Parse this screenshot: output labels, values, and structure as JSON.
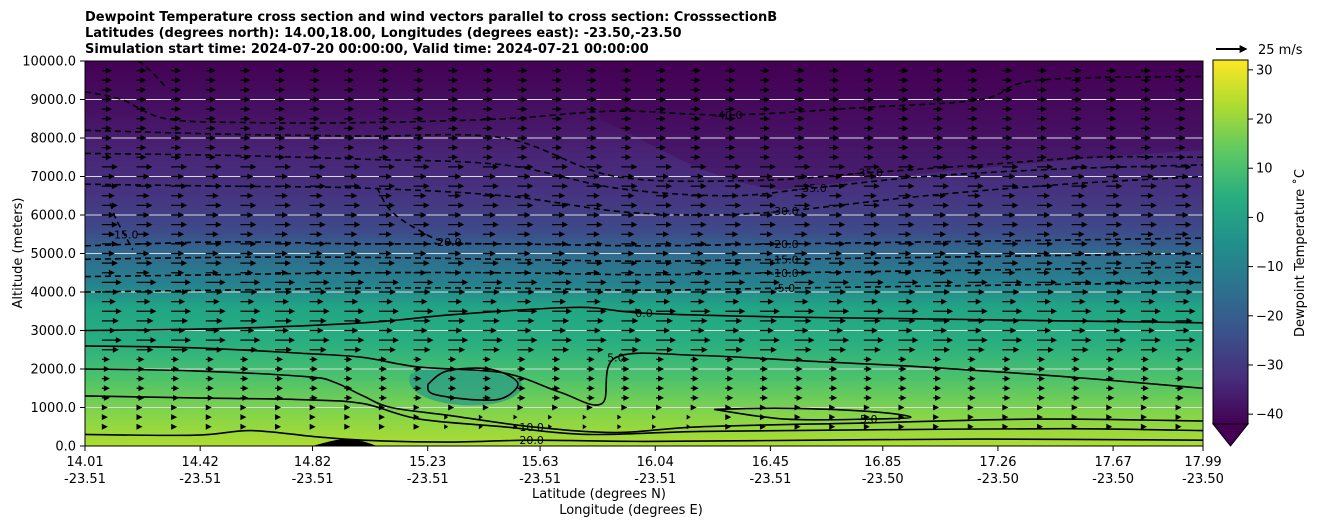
{
  "chart_data": {
    "type": "heatmap",
    "title_lines": [
      "Dewpoint Temperature cross section and wind vectors parallel to cross section: CrosssectionB",
      "Latitudes (degrees north): 14.00,18.00, Longitudes (degrees east): -23.50,-23.50",
      "Simulation start time: 2024-07-20 00:00:00, Valid time: 2024-07-21 00:00:00"
    ],
    "ylabel": "Altitude (meters)",
    "xlabel_lat": "Latitude (degrees N)",
    "xlabel_lon": "Longitude (degrees E)",
    "ylim": [
      0,
      10000
    ],
    "y_ticks": [
      "0.0",
      "1000.0",
      "2000.0",
      "3000.0",
      "4000.0",
      "5000.0",
      "6000.0",
      "7000.0",
      "8000.0",
      "9000.0",
      "10000.0"
    ],
    "y_tick_values": [
      0,
      1000,
      2000,
      3000,
      4000,
      5000,
      6000,
      7000,
      8000,
      9000,
      10000
    ],
    "xlim": [
      14.01,
      17.99
    ],
    "x_tick_lat": [
      "14.01",
      "14.42",
      "14.82",
      "15.23",
      "15.63",
      "16.04",
      "16.45",
      "16.85",
      "17.26",
      "17.67",
      "17.99"
    ],
    "x_tick_lon": [
      "-23.51",
      "-23.51",
      "-23.51",
      "-23.51",
      "-23.51",
      "-23.51",
      "-23.51",
      "-23.50",
      "-23.50",
      "-23.50",
      "-23.50"
    ],
    "x_tick_values": [
      14.01,
      14.42,
      14.82,
      15.23,
      15.63,
      16.04,
      16.45,
      16.85,
      17.26,
      17.67,
      17.99
    ],
    "colorbar": {
      "label": "Dewpoint Temperature ˚C",
      "ticks": [
        "−40",
        "−30",
        "−20",
        "−10",
        "0",
        "10",
        "20",
        "30"
      ],
      "tick_values": [
        -40,
        -30,
        -20,
        -10,
        0,
        10,
        20,
        30
      ],
      "range": [
        -42,
        32
      ],
      "colormap": [
        "#440154",
        "#472d7b",
        "#3b528b",
        "#2c728e",
        "#21918c",
        "#28ae80",
        "#5ec962",
        "#addc30",
        "#fde725"
      ]
    },
    "quiver_key_label": "25 m/s",
    "temperature_profile": {
      "altitudes": [
        0,
        500,
        1000,
        1500,
        2000,
        2500,
        3000,
        3500,
        4000,
        4500,
        5000,
        5500,
        6000,
        6500,
        7000,
        7500,
        8000,
        8500,
        9000,
        9500,
        10000
      ],
      "dewpoint": [
        20,
        14,
        10,
        7,
        6,
        3,
        1,
        0,
        -5,
        -10,
        -20,
        -24,
        -27,
        -30,
        -32,
        -35,
        -37,
        -39,
        -40,
        -41,
        -42
      ]
    },
    "solid_contours": [
      {
        "level": 0,
        "label": "0.0",
        "x": [
          14.01,
          14.5,
          15.0,
          15.3,
          15.6,
          15.8,
          16.0,
          16.5,
          17.0,
          17.5,
          17.99
        ],
        "y": [
          3000,
          3050,
          3200,
          3400,
          3550,
          3600,
          3450,
          3350,
          3300,
          3250,
          3200
        ]
      },
      {
        "level": 5,
        "label": "5.0",
        "x": [
          14.01,
          14.4,
          14.8,
          15.0,
          15.2,
          15.5,
          15.7,
          15.85,
          15.9,
          16.2,
          16.6,
          17.0,
          17.5,
          17.99
        ],
        "y": [
          2600,
          2550,
          2400,
          2300,
          2050,
          1900,
          1400,
          1100,
          2300,
          2350,
          2200,
          2050,
          1800,
          1500
        ]
      },
      {
        "level": 5,
        "label": "",
        "x": [
          15.23,
          15.3,
          15.45,
          15.55,
          15.5,
          15.4,
          15.25,
          15.23
        ],
        "y": [
          1600,
          1950,
          2000,
          1650,
          1250,
          1200,
          1350,
          1600
        ]
      },
      {
        "level": 5,
        "label": "5.0",
        "x": [
          16.25,
          16.5,
          16.8,
          16.95,
          16.8,
          16.5,
          16.25
        ],
        "y": [
          950,
          980,
          900,
          750,
          700,
          700,
          950
        ]
      },
      {
        "level": 10,
        "label": "10.0",
        "x": [
          14.01,
          14.4,
          14.8,
          14.9,
          15.0,
          15.1,
          15.3,
          15.6,
          15.9,
          16.2,
          16.8,
          17.4,
          17.99
        ],
        "y": [
          2000,
          1950,
          1800,
          1650,
          1300,
          1000,
          800,
          500,
          350,
          500,
          600,
          700,
          650
        ]
      },
      {
        "level": 10,
        "label": "",
        "x": [
          14.01,
          14.4,
          14.8,
          15.0,
          15.2,
          15.5,
          15.8,
          16.2,
          16.8,
          17.5,
          17.99
        ],
        "y": [
          1300,
          1250,
          1200,
          1100,
          700,
          500,
          300,
          380,
          420,
          450,
          400
        ]
      },
      {
        "level": 20,
        "label": "20.0",
        "x": [
          14.01,
          14.4,
          14.6,
          14.82,
          15.0,
          15.3,
          15.6,
          16.0,
          16.6,
          17.2,
          17.99
        ],
        "y": [
          300,
          280,
          400,
          250,
          150,
          100,
          150,
          120,
          150,
          180,
          150
        ]
      }
    ],
    "dashed_contours": [
      {
        "level": -5,
        "label": "-5.0",
        "x": [
          14.01,
          14.5,
          15.0,
          15.5,
          16.0,
          16.5,
          17.0,
          17.5,
          17.99
        ],
        "y": [
          4000,
          4050,
          4100,
          4100,
          4050,
          4100,
          4150,
          4200,
          4250
        ]
      },
      {
        "level": -10,
        "label": "-10.0",
        "x": [
          14.01,
          14.5,
          15.0,
          15.5,
          16.0,
          16.5,
          17.0,
          17.5,
          17.99
        ],
        "y": [
          4400,
          4450,
          4500,
          4500,
          4450,
          4500,
          4550,
          4600,
          4650
        ]
      },
      {
        "level": -15,
        "label": "-15.0",
        "x": [
          14.01,
          14.5,
          15.0,
          15.5,
          16.0,
          16.5,
          17.0,
          17.5,
          17.99
        ],
        "y": [
          4850,
          4900,
          4900,
          4850,
          4800,
          4850,
          4900,
          4950,
          5000
        ]
      },
      {
        "level": -20,
        "label": "-20.0",
        "x": [
          14.01,
          14.5,
          15.0,
          15.5,
          16.0,
          16.5,
          17.0,
          17.5,
          17.99
        ],
        "y": [
          5200,
          5300,
          5250,
          5250,
          5200,
          5250,
          5300,
          5350,
          5400
        ]
      },
      {
        "level": -20,
        "label": "-20.0",
        "x": [
          15.05,
          15.1,
          15.2,
          15.3,
          15.5
        ],
        "y": [
          6700,
          6100,
          5600,
          5300,
          5250
        ]
      },
      {
        "level": -15,
        "label": "-15.0",
        "x": [
          14.1,
          14.12,
          14.15,
          14.18
        ],
        "y": [
          6300,
          5900,
          5500,
          5100
        ]
      },
      {
        "level": -30,
        "label": "-30.0",
        "x": [
          14.01,
          14.5,
          15.0,
          15.5,
          15.9,
          16.2,
          16.5,
          17.0,
          17.5,
          17.99
        ],
        "y": [
          6800,
          6750,
          6700,
          6500,
          6100,
          6000,
          6100,
          6500,
          6800,
          7000
        ]
      },
      {
        "level": -35,
        "label": "-35.0",
        "x": [
          14.01,
          14.5,
          15.0,
          15.5,
          15.9,
          16.3,
          16.6,
          17.0,
          17.5,
          17.99
        ],
        "y": [
          7600,
          7550,
          7450,
          7300,
          6700,
          6500,
          6700,
          7000,
          7200,
          7300
        ]
      },
      {
        "level": -35,
        "label": "-35.0",
        "x": [
          14.01,
          14.5,
          15.0,
          15.5,
          15.9,
          16.4,
          16.8,
          17.2,
          17.6,
          17.99
        ],
        "y": [
          8200,
          8100,
          8050,
          8000,
          7000,
          6900,
          7100,
          7300,
          7500,
          7500
        ]
      },
      {
        "level": -40,
        "label": "-40.0",
        "x": [
          14.01,
          14.14,
          14.3,
          14.6,
          15.0,
          15.5,
          15.9,
          16.3,
          16.8,
          17.2,
          17.4,
          17.99
        ],
        "y": [
          9200,
          9000,
          8500,
          8400,
          8400,
          8500,
          8700,
          8600,
          8800,
          9000,
          9500,
          9600
        ]
      },
      {
        "level": -40,
        "label": "",
        "x": [
          14.2,
          14.25,
          14.3
        ],
        "y": [
          10000,
          9700,
          9300
        ]
      }
    ],
    "terrain": {
      "x": [
        14.82,
        14.86,
        14.9,
        14.95,
        15.0,
        15.05
      ],
      "y": [
        0,
        80,
        150,
        180,
        120,
        0
      ]
    }
  }
}
